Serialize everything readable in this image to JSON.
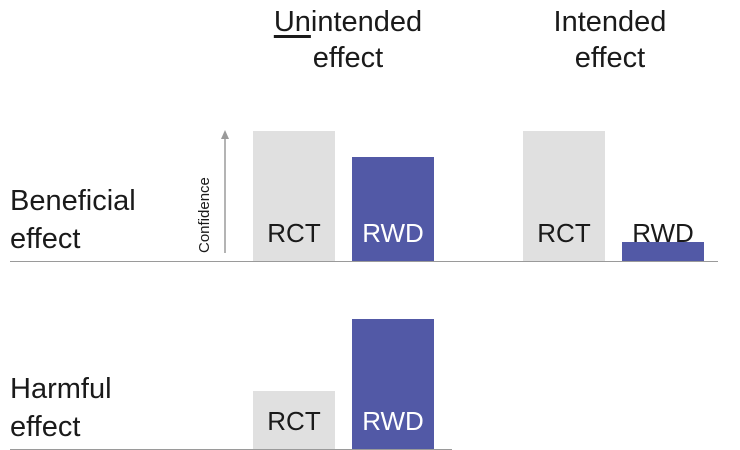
{
  "headers": {
    "unintended": {
      "prefix": "Un",
      "rest": "intended",
      "line2": "effect"
    },
    "intended": {
      "line1": "Intended",
      "line2": "effect"
    }
  },
  "rows": {
    "beneficial": {
      "line1": "Beneficial",
      "line2": "effect"
    },
    "harmful": {
      "line1": "Harmful",
      "line2": "effect"
    }
  },
  "axis_label": "Confidence",
  "colors": {
    "rct": "#e0e0e0",
    "rwd": "#5259a6",
    "rct_text": "#1a1a1a",
    "rwd_text": "#ffffff",
    "baseline": "#9a9a9a"
  },
  "chart_data": {
    "type": "bar",
    "ylabel": "Confidence",
    "ylim": [
      0,
      10
    ],
    "panels": [
      {
        "row": "Beneficial effect",
        "column": "Unintended effect",
        "bars": [
          {
            "label": "RCT",
            "value": 10
          },
          {
            "label": "RWD",
            "value": 8
          }
        ]
      },
      {
        "row": "Beneficial effect",
        "column": "Intended effect",
        "bars": [
          {
            "label": "RCT",
            "value": 10
          },
          {
            "label": "RWD",
            "value": 1.5
          }
        ]
      },
      {
        "row": "Harmful effect",
        "column": "Unintended effect",
        "bars": [
          {
            "label": "RCT",
            "value": 4.5
          },
          {
            "label": "RWD",
            "value": 10
          }
        ]
      }
    ]
  }
}
